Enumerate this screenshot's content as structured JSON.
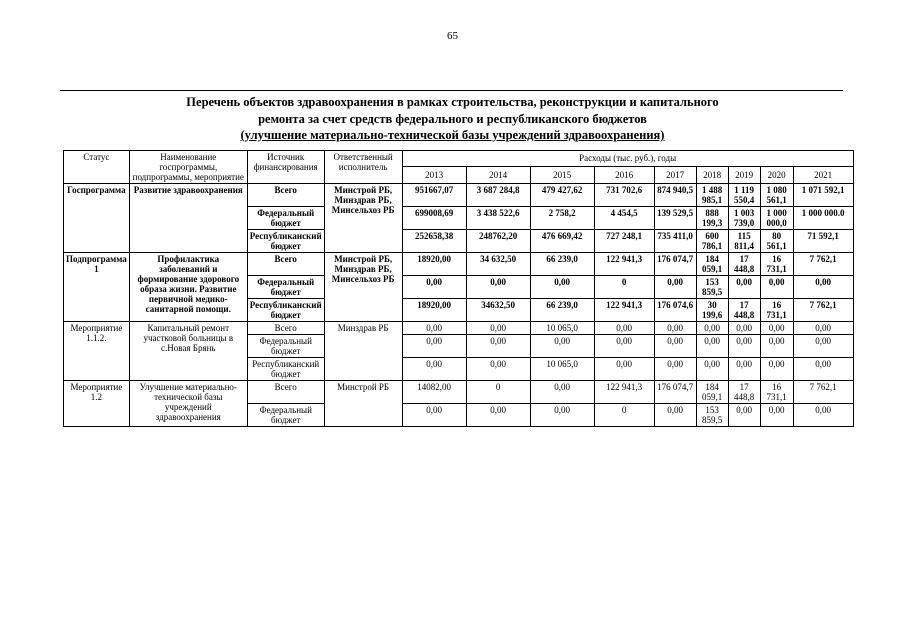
{
  "page": {
    "number": "65"
  },
  "title": {
    "line1": "Перечень объектов здравоохранения в рамках строительства, реконструкции и капитального",
    "line2": "ремонта  за счет средств федерального и республиканского бюджетов",
    "line3": "(улучшение материально-технической базы учреждений здравоохранения)"
  },
  "table": {
    "headers": {
      "status": "Статус",
      "name": "Наименование госпрограммы, подпрограммы, мероприятие",
      "source": "Источник финансирования",
      "executor": "Ответственный исполнитель",
      "expenses": "Расходы (тыс. руб.), годы",
      "years": [
        "2013",
        "2014",
        "2015",
        "2016",
        "2017",
        "2018",
        "2019",
        "2020",
        "2021"
      ]
    },
    "blocks": [
      {
        "status": "Госпрограмма",
        "name": "Развитие здравоохранения",
        "executor": "Минстрой РБ, Минздрав РБ, Минсельхоз РБ",
        "bold": true,
        "rows": [
          {
            "source": "Всего",
            "values": [
              "951667,07",
              "3 687 284,8",
              "479 427,62",
              "731 702,6",
              "874 940,5",
              "1 488 985,1",
              "1 119 550,4",
              "1 080 561,1",
              "1 071 592,1"
            ]
          },
          {
            "source": "Федеральный бюджет",
            "values": [
              "699008,69",
              "3 438 522,6",
              "2 758,2",
              "4 454,5",
              "139 529,5",
              "888 199,3",
              "1 003 739,0",
              "1 000 000,0",
              "1 000 000.0"
            ]
          },
          {
            "source": "Республиканский бюджет",
            "values": [
              "252658,38",
              "248762,20",
              "476 669,42",
              "727 248,1",
              "735 411,0",
              "600 786,1",
              "115 811,4",
              "80 561,1",
              "71 592,1"
            ]
          }
        ]
      },
      {
        "status": "Подпрограмма 1",
        "name": "Профилактика заболеваний и формирование здорового образа жизни. Развитие первичной медико-санитарной помощи.",
        "executor": "Минстрой РБ, Минздрав РБ, Минсельхоз РБ",
        "bold": true,
        "rows": [
          {
            "source": "Всего",
            "values": [
              "18920,00",
              "34 632,50",
              "66 239,0",
              "122 941,3",
              "176 074,7",
              "184 059,1",
              "17 448,8",
              "16 731,1",
              "7 762,1"
            ]
          },
          {
            "source": "Федеральный бюджет",
            "values": [
              "0,00",
              "0,00",
              "0,00",
              "0",
              "0,00",
              "153 859,5",
              "0,00",
              "0,00",
              "0,00"
            ]
          },
          {
            "source": "Республиканский бюджет",
            "values": [
              "18920,00",
              "34632,50",
              "66 239,0",
              "122 941,3",
              "176 074,6",
              "30 199,6",
              "17 448,8",
              "16 731,1",
              "7 762,1"
            ]
          }
        ]
      },
      {
        "status": "Мероприятие 1.1.2.",
        "name": "Капитальный ремонт участковой больницы в с.Новая Брянь",
        "executor": "Минздрав РБ",
        "bold": false,
        "rows": [
          {
            "source": "Всего",
            "values": [
              "0,00",
              "0,00",
              "10 065,0",
              "0,00",
              "0,00",
              "0,00",
              "0,00",
              "0,00",
              "0,00"
            ]
          },
          {
            "source": "Федеральный бюджет",
            "values": [
              "0,00",
              "0,00",
              "0,00",
              "0,00",
              "0,00",
              "0,00",
              "0,00",
              "0,00",
              "0,00"
            ]
          },
          {
            "source": "Республиканский бюджет",
            "values": [
              "0,00",
              "0,00",
              "10 065,0",
              "0,00",
              "0,00",
              "0,00",
              "0,00",
              "0,00",
              "0,00"
            ]
          }
        ]
      },
      {
        "status": "Мероприятие 1.2",
        "name": "Улучшение материально-технической базы учреждений здравоохранения",
        "executor": "Минстрой РБ",
        "bold": false,
        "rows": [
          {
            "source": "Всего",
            "values": [
              "14082,00",
              "0",
              "0,00",
              "122 941,3",
              "176 074,7",
              "184 059,1",
              "17 448,8",
              "16 731,1",
              "7 762,1"
            ]
          },
          {
            "source": "Федеральный бюджет",
            "values": [
              "0,00",
              "0,00",
              "0,00",
              "0",
              "0,00",
              "153 859,5",
              "0,00",
              "0,00",
              "0,00"
            ]
          }
        ]
      }
    ]
  }
}
